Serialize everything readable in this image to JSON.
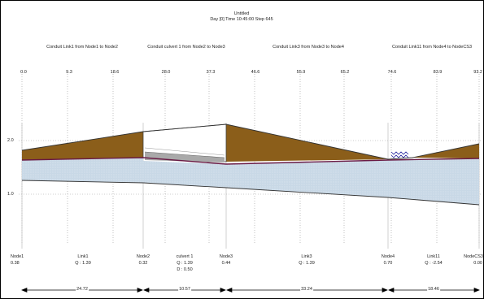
{
  "header": {
    "title": "Untitled",
    "subtitle": "Day [0] Time 10:45:00 Step 645"
  },
  "segments": [
    {
      "label": "Conduit Link1 from Node1 to Node2"
    },
    {
      "label": "Conduit culvert 1 from Node2 to Node3"
    },
    {
      "label": "Conduit Link3 from Node3 to Node4"
    },
    {
      "label": "Conduit Link11 from Node4 to NodeCS3"
    }
  ],
  "chainage_ticks": [
    "0.0",
    "9.3",
    "18.6",
    "28.0",
    "37.3",
    "46.6",
    "55.9",
    "65.2",
    "74.6",
    "83.9",
    "93.2"
  ],
  "y_ticks": [
    "2.0",
    "1.0"
  ],
  "nodes": [
    {
      "name": "Node1",
      "value": "0.38"
    },
    {
      "name": "Node2",
      "value": "0.32"
    },
    {
      "name": "Node3",
      "value": "0.44"
    },
    {
      "name": "Node4",
      "value": "0.70"
    },
    {
      "name": "NodeCS3",
      "value": "0.00"
    }
  ],
  "links": [
    {
      "name": "Link1",
      "q": "Q : 1.39"
    },
    {
      "name": "culvert 1",
      "q": "Q : 1.39",
      "d": "D : 0.50"
    },
    {
      "name": "Link3",
      "q": "Q : 1.39"
    },
    {
      "name": "Link11",
      "q": "Q : -2.54"
    }
  ],
  "lengths": [
    "24.72",
    "10.57",
    "33.24",
    "18.46"
  ],
  "colors": {
    "soil": "#8b5e1a",
    "water": "#c8d8e6",
    "conduit_crown": "#6a1b45",
    "culvert": "#a0a0a0",
    "grid": "#9a9a9a"
  }
}
